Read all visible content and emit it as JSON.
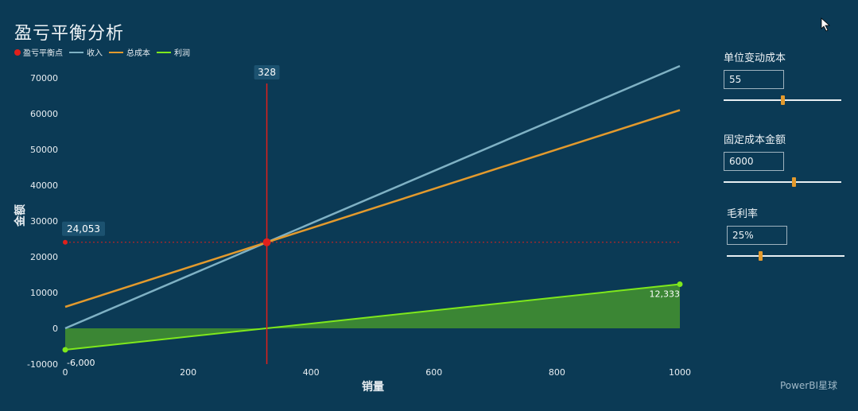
{
  "title": "盈亏平衡分析",
  "legend": [
    {
      "label": "盈亏平衡点",
      "color": "#e0201b",
      "kind": "dot"
    },
    {
      "label": "收入",
      "color": "#7fb1c4",
      "kind": "line"
    },
    {
      "label": "总成本",
      "color": "#e39a2d",
      "kind": "line"
    },
    {
      "label": "利润",
      "color": "#7fe81c",
      "kind": "line"
    }
  ],
  "params": [
    {
      "label": "单位变动成本",
      "value": "55",
      "slider_fraction": 0.5
    },
    {
      "label": "固定成本金额",
      "value": "6000",
      "slider_fraction": 0.6
    },
    {
      "label": "毛利率",
      "value": "25%",
      "slider_fraction": 0.28
    }
  ],
  "footer": "PowerBI星球",
  "colors": {
    "background": "#0b3a55",
    "revenue": "#7fb1c4",
    "cost": "#e39a2d",
    "profit": "#7fe81c",
    "profit_fill": "#3e8a33",
    "breakeven": "#e0201b"
  },
  "chart_data": {
    "type": "line",
    "xlabel": "销量",
    "ylabel": "金额",
    "xlim": [
      0,
      1000
    ],
    "ylim": [
      -10000,
      75000
    ],
    "xticks": [
      0,
      200,
      400,
      600,
      800,
      1000
    ],
    "yticks": [
      -10000,
      0,
      10000,
      20000,
      30000,
      40000,
      50000,
      60000,
      70000
    ],
    "x": [
      0,
      1000
    ],
    "series": [
      {
        "name": "收入",
        "values": [
          0,
          73333
        ]
      },
      {
        "name": "总成本",
        "values": [
          6000,
          61000
        ]
      },
      {
        "name": "利润",
        "values": [
          -6000,
          12333
        ]
      }
    ],
    "breakeven": {
      "x": 328,
      "y": 24053,
      "x_label": "328",
      "y_label": "24,053"
    },
    "data_labels": [
      {
        "series": "利润",
        "x": 0,
        "y": -6000,
        "text": "-6,000"
      },
      {
        "series": "利润",
        "x": 1000,
        "y": 12333,
        "text": "12,333"
      }
    ]
  }
}
